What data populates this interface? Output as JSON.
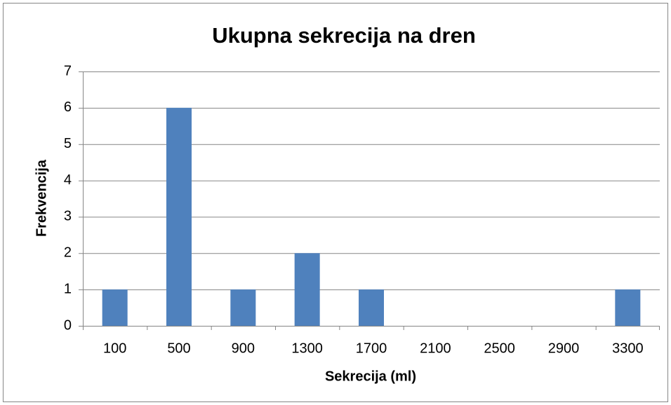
{
  "chart_data": {
    "type": "bar",
    "title": "Ukupna sekrecija na dren",
    "x_label": "Sekrecija (ml)",
    "y_label": "Frekvencija",
    "categories": [
      "100",
      "500",
      "900",
      "1300",
      "1700",
      "2100",
      "2500",
      "2900",
      "3300"
    ],
    "values": [
      1,
      6,
      1,
      2,
      1,
      0,
      0,
      0,
      1
    ],
    "color": "#4f81bd",
    "ylim": [
      0,
      7
    ],
    "yticks": [
      0,
      1,
      2,
      3,
      4,
      5,
      6,
      7
    ],
    "grid": true
  }
}
